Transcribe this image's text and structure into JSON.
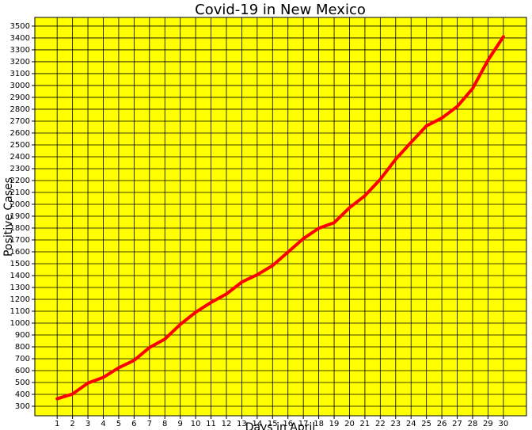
{
  "chart_data": {
    "type": "line",
    "title": "Covid-19 in New Mexico",
    "x_label": "Days in April",
    "y_label": "Positive Cases",
    "x": [
      1,
      2,
      3,
      4,
      5,
      6,
      7,
      8,
      9,
      10,
      11,
      12,
      13,
      14,
      15,
      16,
      17,
      18,
      19,
      20,
      21,
      22,
      23,
      24,
      25,
      26,
      27,
      28,
      29,
      30
    ],
    "series": [
      {
        "name": "Positive Cases",
        "color": "#ff0000",
        "values": [
          363,
          403,
          495,
          543,
          624,
          686,
          794,
          865,
          989,
          1091,
          1174,
          1245,
          1345,
          1407,
          1484,
          1597,
          1711,
          1798,
          1845,
          1971,
          2072,
          2210,
          2379,
          2521,
          2660,
          2726,
          2823,
          2974,
          3213,
          3411
        ]
      }
    ],
    "xlim": [
      -0.45,
      31.5
    ],
    "ylim": [
      220,
      3573
    ],
    "xticks": [
      1,
      2,
      3,
      4,
      5,
      6,
      7,
      8,
      9,
      10,
      11,
      12,
      13,
      14,
      15,
      16,
      17,
      18,
      19,
      20,
      21,
      22,
      23,
      24,
      25,
      26,
      27,
      28,
      29,
      30
    ],
    "yticks": [
      300,
      400,
      500,
      600,
      700,
      800,
      900,
      1000,
      1100,
      1200,
      1300,
      1400,
      1500,
      1600,
      1700,
      1800,
      1900,
      2000,
      2100,
      2200,
      2300,
      2400,
      2500,
      2600,
      2700,
      2800,
      2900,
      3000,
      3100,
      3200,
      3300,
      3400,
      3500
    ],
    "grid": true,
    "background": "#ffff00"
  }
}
